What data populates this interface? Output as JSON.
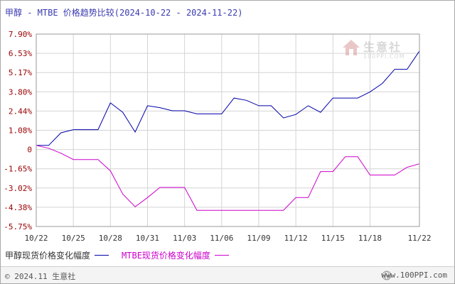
{
  "header": {
    "title": "甲醇 - MTBE 价格趋势比较(2024-10-22 - 2024-11-22)"
  },
  "watermark": {
    "text": "生意社",
    "url": "100PPI.COM"
  },
  "footer": {
    "copyright": "© 2024.11 生意社",
    "site": "www.100PPI.com"
  },
  "colors": {
    "series_1": "#0000aa",
    "series_2": "#cc00cc",
    "grid": "#d4d4d4",
    "axis_text": "#990000"
  },
  "chart_data": {
    "type": "line",
    "title": "甲醇 - MTBE 价格趋势比较(2024-10-22 - 2024-11-22)",
    "xlabel": "",
    "ylabel": "",
    "x": [
      "10/22",
      "10/23",
      "10/24",
      "10/25",
      "10/26",
      "10/27",
      "10/28",
      "10/29",
      "10/30",
      "10/31",
      "11/01",
      "11/02",
      "11/03",
      "11/04",
      "11/05",
      "11/06",
      "11/07",
      "11/08",
      "11/09",
      "11/10",
      "11/11",
      "11/12",
      "11/13",
      "11/14",
      "11/15",
      "11/16",
      "11/17",
      "11/18",
      "11/19",
      "11/20",
      "11/21",
      "11/22"
    ],
    "x_ticks": [
      "10/22",
      "10/25",
      "10/28",
      "10/31",
      "11/03",
      "11/06",
      "11/09",
      "11/12",
      "11/15",
      "11/18",
      "11/22"
    ],
    "y_ticks": [
      "7.90%",
      "6.53%",
      "5.17%",
      "3.80%",
      "2.44%",
      "1.08%",
      "0",
      "-1.65%",
      "-3.02%",
      "-4.38%",
      "-5.75%"
    ],
    "ylim": [
      -5.75,
      7.9
    ],
    "grid": true,
    "legend_position": "bottom-left",
    "series": [
      {
        "name": "甲醇现货价格变化幅度",
        "values": [
          0,
          0,
          0.9,
          1.12,
          1.12,
          1.12,
          3.02,
          2.35,
          0.95,
          2.82,
          2.68,
          2.46,
          2.46,
          2.24,
          2.24,
          2.24,
          3.36,
          3.2,
          2.82,
          2.82,
          1.95,
          2.2,
          2.82,
          2.35,
          3.36,
          3.36,
          3.36,
          3.8,
          4.4,
          5.4,
          5.4,
          6.7
        ]
      },
      {
        "name": "MTBE现货价格变化幅度",
        "values": [
          0,
          -0.2,
          -0.55,
          -1.0,
          -1.0,
          -1.0,
          -1.8,
          -3.45,
          -4.35,
          -3.7,
          -2.98,
          -2.98,
          -2.98,
          -4.6,
          -4.6,
          -4.6,
          -4.6,
          -4.6,
          -4.6,
          -4.6,
          -4.6,
          -3.7,
          -3.7,
          -1.85,
          -1.85,
          -0.8,
          -0.8,
          -2.1,
          -2.1,
          -2.1,
          -1.55,
          -1.3
        ]
      }
    ]
  }
}
